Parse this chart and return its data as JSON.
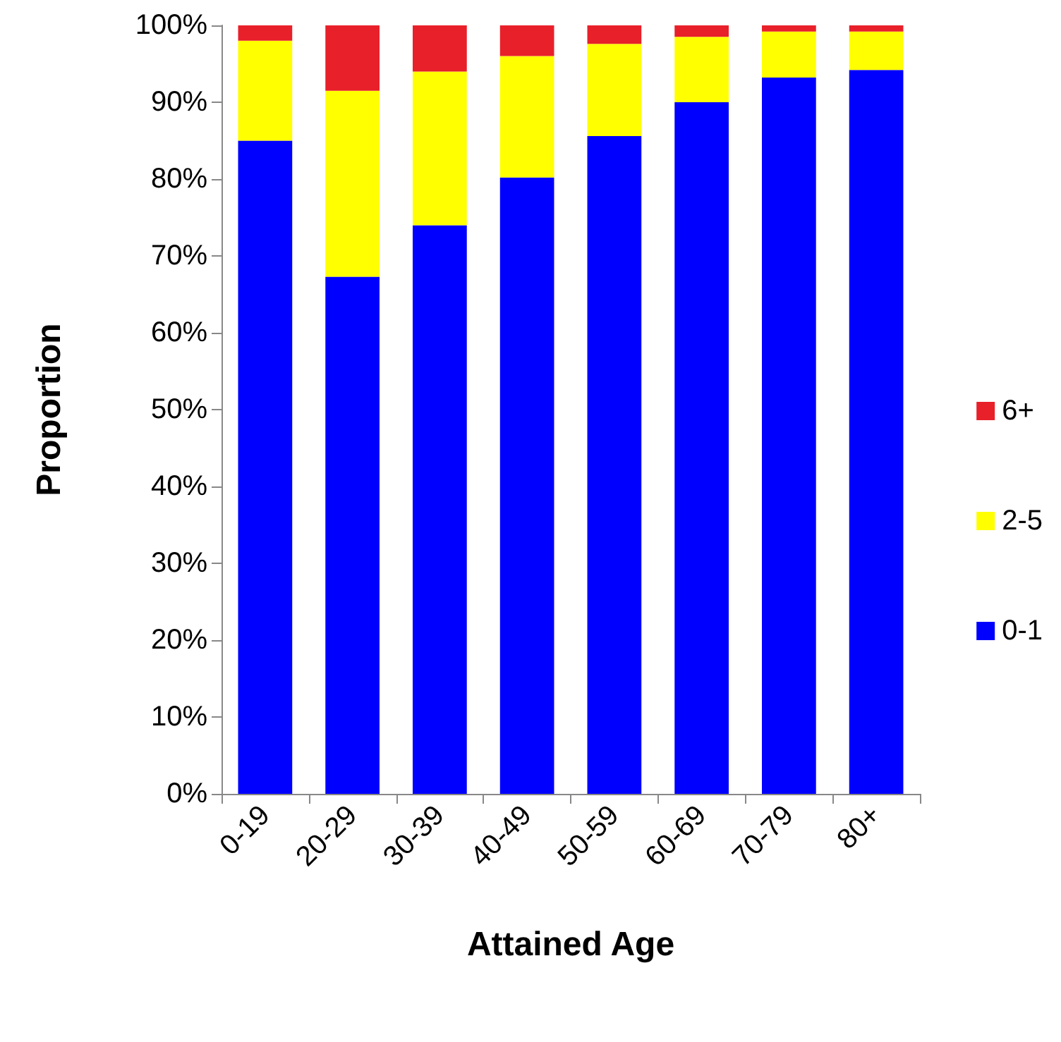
{
  "chart_data": {
    "type": "bar",
    "stacked": true,
    "xlabel": "Attained Age",
    "ylabel": "Proportion",
    "categories": [
      "0-19",
      "20-29",
      "30-39",
      "40-49",
      "50-59",
      "60-69",
      "70-79",
      "80+"
    ],
    "series": [
      {
        "name": "0-1",
        "color": "#0000ff",
        "values": [
          85,
          67.3,
          74,
          80.2,
          85.6,
          90,
          93.2,
          94.2
        ]
      },
      {
        "name": "2-5",
        "color": "#ffff00",
        "values": [
          13,
          24.2,
          20,
          15.8,
          12,
          8.5,
          6,
          5
        ]
      },
      {
        "name": "6+",
        "color": "#e8202a",
        "values": [
          2,
          8.5,
          6,
          4,
          2.4,
          1.5,
          0.8,
          0.8
        ]
      }
    ],
    "ylim": [
      0,
      100
    ],
    "yticks": [
      {
        "value": 0,
        "label": "0%"
      },
      {
        "value": 10,
        "label": "10%"
      },
      {
        "value": 20,
        "label": "20%"
      },
      {
        "value": 30,
        "label": "30%"
      },
      {
        "value": 40,
        "label": "40%"
      },
      {
        "value": 50,
        "label": "50%"
      },
      {
        "value": 60,
        "label": "60%"
      },
      {
        "value": 70,
        "label": "70%"
      },
      {
        "value": 80,
        "label": "80%"
      },
      {
        "value": 90,
        "label": "90%"
      },
      {
        "value": 100,
        "label": "100%"
      }
    ],
    "grid": false,
    "legend": "right"
  }
}
